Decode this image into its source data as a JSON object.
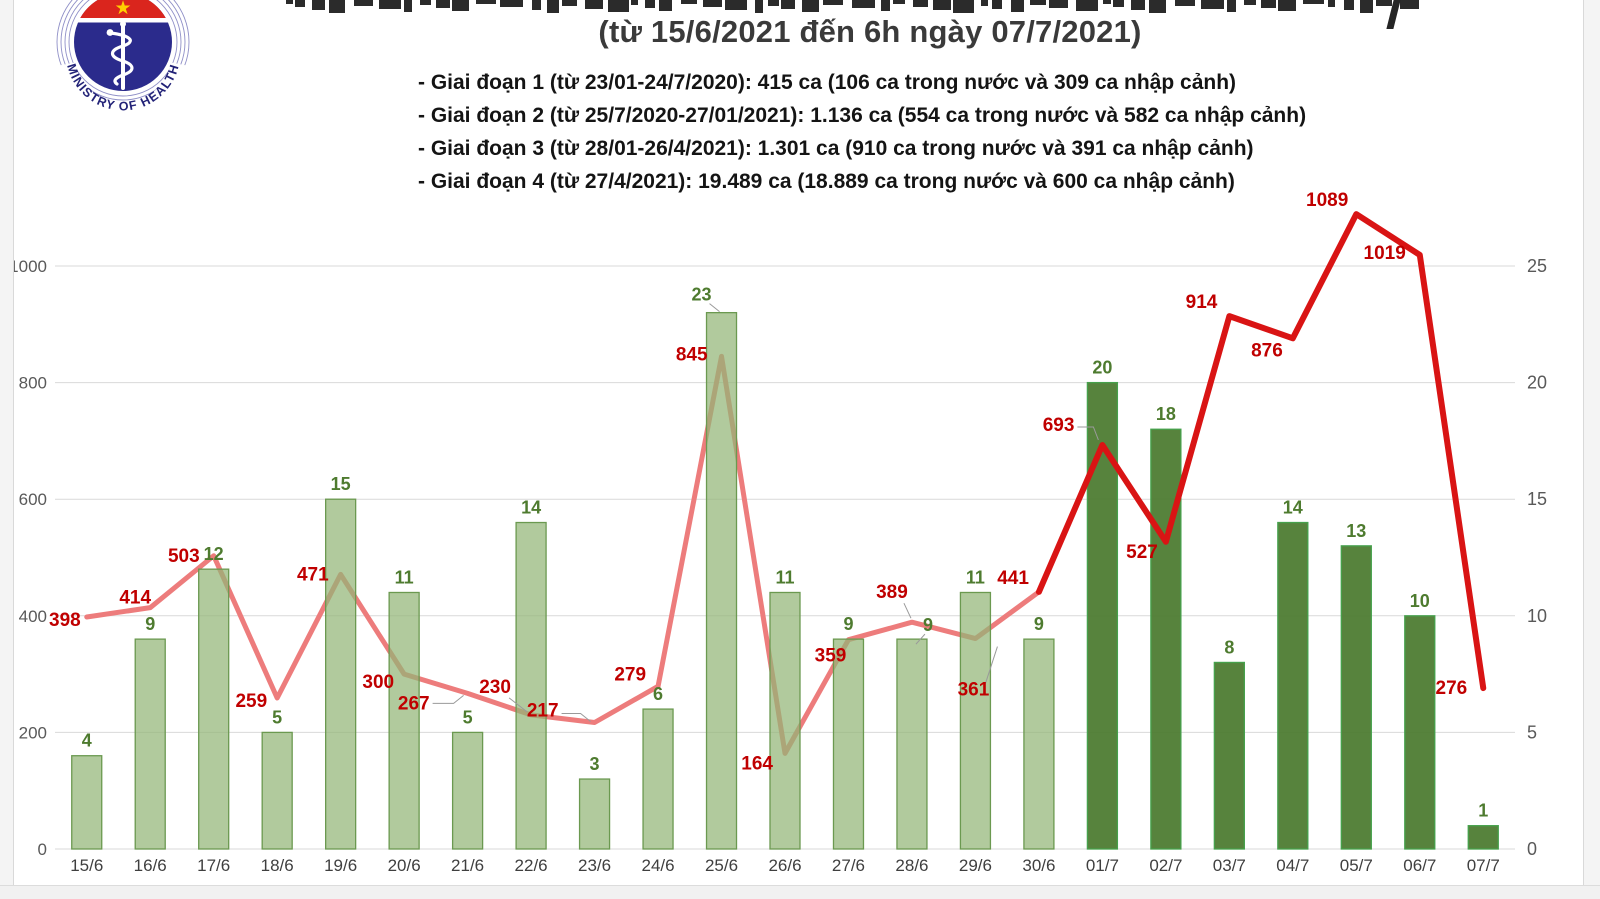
{
  "logo": {
    "text": "MINISTRY OF HEALTH",
    "star_icon": "★"
  },
  "header": {
    "subtitle": "(từ 15/6/2021 đến 6h ngày 07/7/2021)",
    "phases": [
      "- Giai đoạn 1 (từ 23/01-24/7/2020): 415 ca (106 ca trong nước và 309 ca nhập cảnh)",
      "- Giai đoạn 2 (từ 25/7/2020-27/01/2021): 1.136 ca (554 ca trong nước và 582 ca nhập cảnh)",
      "- Giai đoạn 3 (từ 28/01-26/4/2021): 1.301 ca (910 ca trong nước và 391 ca nhập cảnh)",
      "- Giai đoạn 4 (từ 27/4/2021): 19.489 ca (18.889 ca trong nước và 600 ca nhập cảnh)"
    ]
  },
  "chart_data": {
    "type": "combo",
    "categories": [
      "15/6",
      "16/6",
      "17/6",
      "18/6",
      "19/6",
      "20/6",
      "21/6",
      "22/6",
      "23/6",
      "24/6",
      "25/6",
      "26/6",
      "27/6",
      "28/6",
      "29/6",
      "30/6",
      "01/7",
      "02/7",
      "03/7",
      "04/7",
      "05/7",
      "06/7",
      "07/7"
    ],
    "series": [
      {
        "type": "bar",
        "axis": "right",
        "values": [
          4,
          9,
          12,
          5,
          15,
          11,
          5,
          14,
          3,
          6,
          23,
          11,
          9,
          9,
          11,
          9,
          20,
          18,
          8,
          14,
          13,
          10,
          1
        ]
      },
      {
        "type": "line",
        "axis": "left",
        "values": [
          398,
          414,
          503,
          259,
          471,
          300,
          267,
          230,
          217,
          279,
          845,
          164,
          359,
          389,
          361,
          441,
          693,
          527,
          914,
          876,
          1089,
          1019,
          276
        ]
      }
    ],
    "left_axis_ticks": [
      0,
      200,
      400,
      600,
      800,
      1000
    ],
    "right_axis_ticks": [
      0,
      5,
      10,
      15,
      20,
      25
    ],
    "left_axis_range": [
      0,
      1000
    ],
    "right_axis_range": [
      0,
      25
    ],
    "grid": true,
    "legend": "none",
    "style_change": {
      "bars_dark_from_index": 16,
      "line_dark_from_index": 15
    },
    "colors": {
      "bar_june_fill": "#93b577",
      "bar_june_border": "#6b9950",
      "bar_july_fill": "#4a7a2e",
      "bar_july_border": "#46a14c",
      "line_june": "#ed7c7c",
      "line_july": "#d91414",
      "bar_label": "#4e7b2f",
      "line_label": "#c00000",
      "axis_text": "#595959",
      "date_text": "#3f3f3f",
      "gridline": "#d9d9d9",
      "leader": "#9a9a9a"
    }
  }
}
